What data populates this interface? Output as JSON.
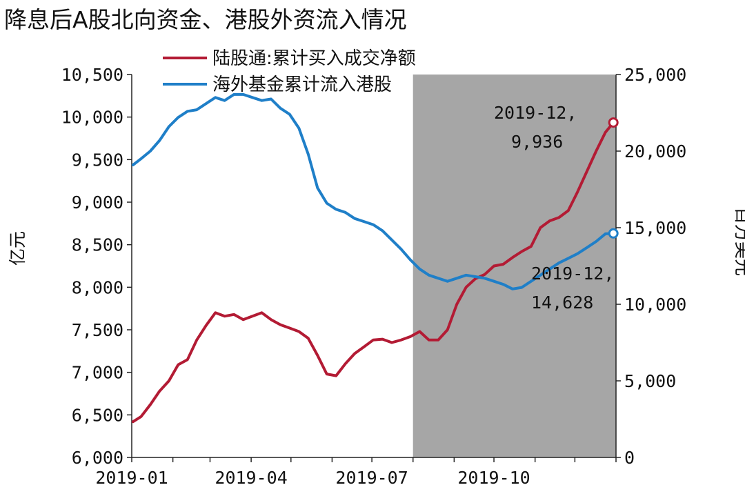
{
  "chart_data": {
    "type": "line",
    "title": "降息后A股北向资金、港股外资流入情况",
    "ylabel_left": "亿元",
    "ylabel_right": "百万美元",
    "ylim_left": [
      6000,
      10500
    ],
    "ylim_right": [
      0,
      25000
    ],
    "yticks_left": [
      "6,000",
      "6,500",
      "7,000",
      "7,500",
      "8,000",
      "8,500",
      "9,000",
      "9,500",
      "10,000",
      "10,500"
    ],
    "yticks_right": [
      "0",
      "5,000",
      "10,000",
      "15,000",
      "20,000",
      "25,000"
    ],
    "xticks": [
      "2019-01",
      "2019-04",
      "2019-07",
      "2019-10"
    ],
    "xlim": [
      "2019-01",
      "2019-12"
    ],
    "shaded_region": [
      "2019-08",
      "2019-12"
    ],
    "legend_position": "top",
    "colors": {
      "series1": "#b31b34",
      "series2": "#1f7fc8",
      "shade": "#a6a6a6"
    },
    "series": [
      {
        "name": "陆股通:累计买入成交净额",
        "axis": "left",
        "x": [
          "2019-01-02",
          "2019-01-08",
          "2019-01-15",
          "2019-01-22",
          "2019-01-29",
          "2019-02-05",
          "2019-02-12",
          "2019-02-19",
          "2019-02-26",
          "2019-03-05",
          "2019-03-12",
          "2019-03-19",
          "2019-03-26",
          "2019-04-02",
          "2019-04-09",
          "2019-04-16",
          "2019-04-23",
          "2019-04-30",
          "2019-05-07",
          "2019-05-14",
          "2019-05-21",
          "2019-05-28",
          "2019-06-04",
          "2019-06-11",
          "2019-06-18",
          "2019-06-25",
          "2019-07-02",
          "2019-07-09",
          "2019-07-16",
          "2019-07-23",
          "2019-07-30",
          "2019-08-06",
          "2019-08-13",
          "2019-08-20",
          "2019-08-27",
          "2019-09-03",
          "2019-09-10",
          "2019-09-17",
          "2019-09-24",
          "2019-10-01",
          "2019-10-08",
          "2019-10-15",
          "2019-10-22",
          "2019-10-29",
          "2019-11-05",
          "2019-11-12",
          "2019-11-19",
          "2019-11-26",
          "2019-12-03",
          "2019-12-10",
          "2019-12-17",
          "2019-12-24",
          "2019-12-30"
        ],
        "values": [
          6420,
          6480,
          6620,
          6780,
          6900,
          7090,
          7150,
          7380,
          7550,
          7700,
          7660,
          7680,
          7620,
          7660,
          7700,
          7620,
          7560,
          7520,
          7480,
          7400,
          7200,
          6980,
          6960,
          7100,
          7220,
          7300,
          7380,
          7390,
          7350,
          7380,
          7420,
          7480,
          7380,
          7380,
          7500,
          7800,
          8000,
          8100,
          8150,
          8250,
          8270,
          8350,
          8420,
          8480,
          8700,
          8780,
          8820,
          8900,
          9120,
          9360,
          9600,
          9820,
          9936
        ]
      },
      {
        "name": "海外基金累计流入港股",
        "axis": "right",
        "x": [
          "2019-01-02",
          "2019-01-08",
          "2019-01-15",
          "2019-01-22",
          "2019-01-29",
          "2019-02-05",
          "2019-02-12",
          "2019-02-19",
          "2019-02-26",
          "2019-03-05",
          "2019-03-12",
          "2019-03-19",
          "2019-03-26",
          "2019-04-02",
          "2019-04-09",
          "2019-04-16",
          "2019-04-23",
          "2019-04-30",
          "2019-05-07",
          "2019-05-14",
          "2019-05-21",
          "2019-05-28",
          "2019-06-04",
          "2019-06-11",
          "2019-06-18",
          "2019-06-25",
          "2019-07-02",
          "2019-07-09",
          "2019-07-16",
          "2019-07-23",
          "2019-07-30",
          "2019-08-06",
          "2019-08-13",
          "2019-08-20",
          "2019-08-27",
          "2019-09-03",
          "2019-09-10",
          "2019-09-17",
          "2019-09-24",
          "2019-10-01",
          "2019-10-08",
          "2019-10-15",
          "2019-10-22",
          "2019-10-29",
          "2019-11-05",
          "2019-11-12",
          "2019-11-19",
          "2019-11-26",
          "2019-12-03",
          "2019-12-10",
          "2019-12-17",
          "2019-12-24",
          "2019-12-30"
        ],
        "values": [
          19100,
          19500,
          20000,
          20700,
          21600,
          22200,
          22600,
          22700,
          23100,
          23500,
          23300,
          23700,
          23700,
          23500,
          23300,
          23400,
          22800,
          22400,
          21500,
          19800,
          17600,
          16600,
          16200,
          16000,
          15600,
          15400,
          15200,
          14800,
          14200,
          13600,
          12900,
          12300,
          11900,
          11700,
          11500,
          11700,
          11900,
          11800,
          11700,
          11500,
          11300,
          11000,
          11100,
          11500,
          11900,
          12300,
          12700,
          13000,
          13300,
          13700,
          14100,
          14600,
          14628
        ]
      }
    ],
    "annotations": [
      {
        "series": "陆股通:累计买入成交净额",
        "line1": "2019-12,",
        "line2": "9,936"
      },
      {
        "series": "海外基金累计流入港股",
        "line1": "2019-12,",
        "line2": "14,628"
      }
    ]
  }
}
